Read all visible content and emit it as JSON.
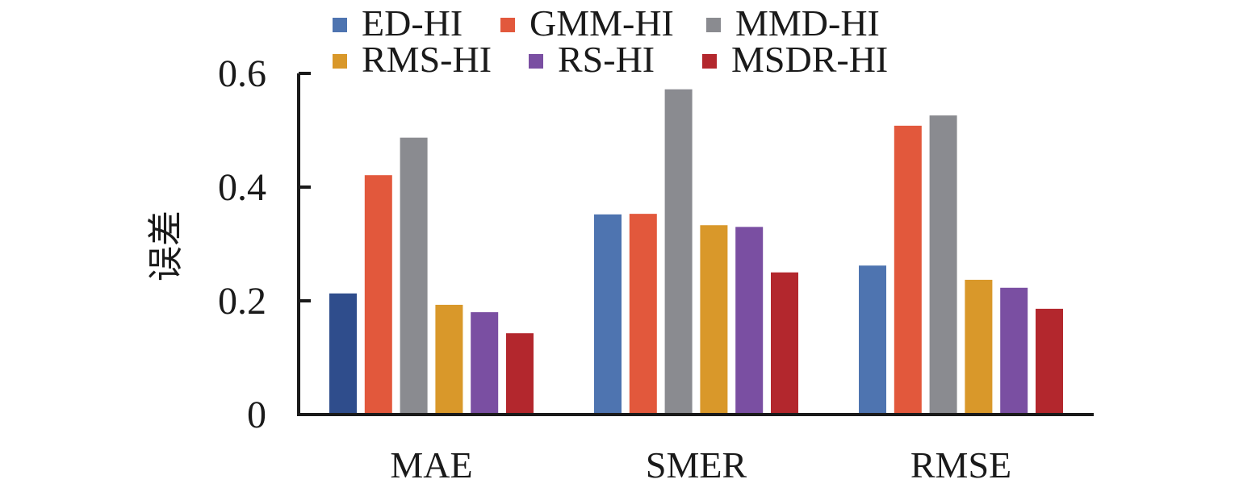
{
  "chart_data": {
    "type": "bar",
    "title": "",
    "xlabel": "",
    "ylabel": "误差",
    "ylim": [
      0,
      0.6
    ],
    "yticks": [
      {
        "value": 0,
        "label": "0"
      },
      {
        "value": 0.2,
        "label": "0.2"
      },
      {
        "value": 0.4,
        "label": "0.4"
      },
      {
        "value": 0.6,
        "label": "0.6"
      }
    ],
    "categories": [
      "MAE",
      "SMER",
      "RMSE"
    ],
    "legend_placement": "top",
    "series": [
      {
        "name": "ED-HI",
        "color": "#4e74b0",
        "values": [
          0.213,
          0.352,
          0.262
        ]
      },
      {
        "name": "GMM-HI",
        "color": "#e2583c",
        "values": [
          0.421,
          0.353,
          0.508
        ]
      },
      {
        "name": "MMD-HI",
        "color": "#8a8b90",
        "values": [
          0.487,
          0.572,
          0.526
        ]
      },
      {
        "name": "RMS-HI",
        "color": "#d9982a",
        "values": [
          0.193,
          0.333,
          0.237
        ]
      },
      {
        "name": "RS-HI",
        "color": "#7a4fa2",
        "values": [
          0.18,
          0.33,
          0.223
        ]
      },
      {
        "name": "MSDR-HI",
        "color": "#b3272d",
        "values": [
          0.143,
          0.25,
          0.186
        ]
      }
    ],
    "bar_color_overrides": [
      {
        "series": 0,
        "category": 0,
        "color": "#2f4d8c"
      }
    ]
  }
}
